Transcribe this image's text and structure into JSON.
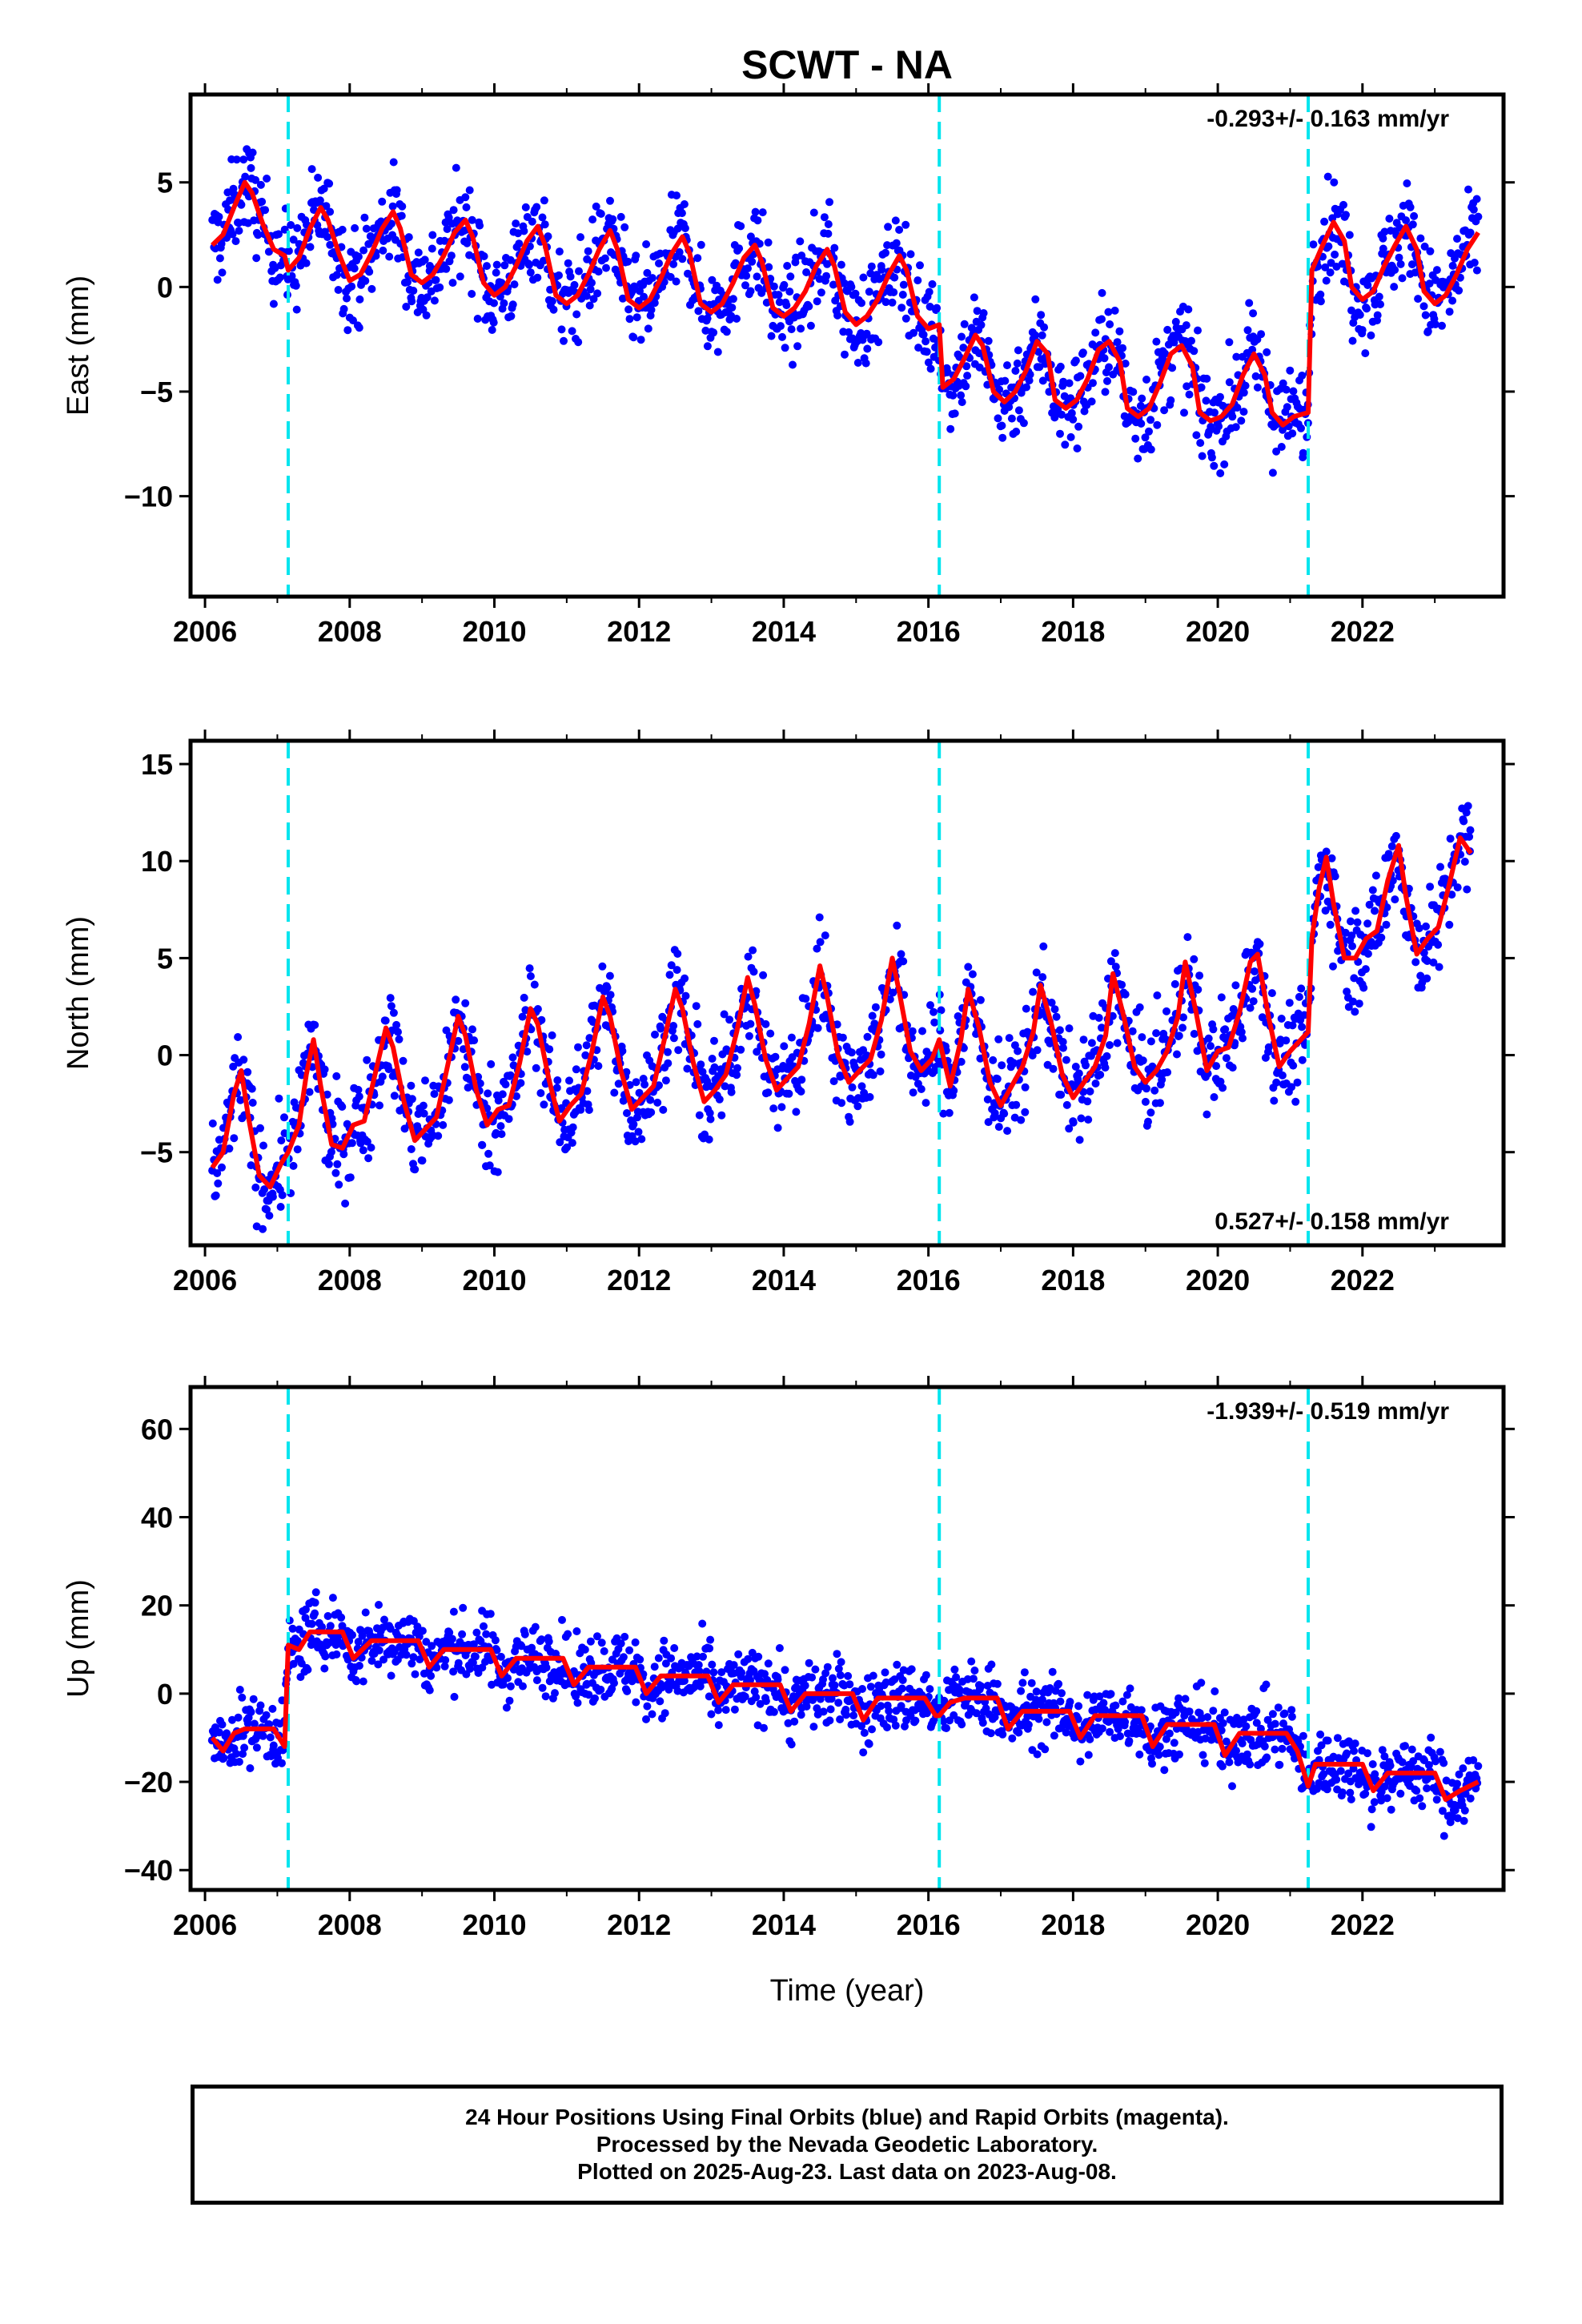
{
  "title": "SCWT - NA",
  "colors": {
    "points": "#0000ff",
    "model": "#ff0000",
    "offsets": "#00e5ee",
    "frame": "#000000"
  },
  "xlabel": "Time (year)",
  "footer": {
    "line1": "24 Hour Positions Using Final Orbits (blue) and Rapid Orbits (magenta).",
    "line2": "Processed by the Nevada Geodetic Laboratory.",
    "line3": "Plotted on 2025-Aug-23. Last data on 2023-Aug-08."
  },
  "chart_data": [
    {
      "type": "scatter",
      "name": "east",
      "ylabel": "East (mm)",
      "rate_text": "-0.293+/- 0.163 mm/yr",
      "rate_position": "top-right",
      "xlim": [
        2005.8,
        2023.95
      ],
      "ylim": [
        -14.8,
        9.2
      ],
      "xticks": [
        2006,
        2008,
        2010,
        2012,
        2014,
        2016,
        2018,
        2020,
        2022
      ],
      "yticks": [
        -10,
        -5,
        0,
        5
      ],
      "offsets": [
        2007.15,
        2016.15,
        2021.25
      ],
      "x": [
        2006.1,
        2006.25,
        2006.4,
        2006.55,
        2006.65,
        2006.8,
        2006.95,
        2007.1,
        2007.15,
        2007.3,
        2007.45,
        2007.6,
        2007.7,
        2007.85,
        2008.0,
        2008.15,
        2008.3,
        2008.45,
        2008.6,
        2008.7,
        2008.85,
        2009.0,
        2009.15,
        2009.3,
        2009.45,
        2009.6,
        2009.7,
        2009.85,
        2010.0,
        2010.15,
        2010.3,
        2010.45,
        2010.6,
        2010.7,
        2010.85,
        2011.0,
        2011.15,
        2011.3,
        2011.45,
        2011.6,
        2011.7,
        2011.85,
        2012.0,
        2012.15,
        2012.3,
        2012.45,
        2012.6,
        2012.7,
        2012.85,
        2013.0,
        2013.15,
        2013.3,
        2013.45,
        2013.6,
        2013.7,
        2013.85,
        2014.0,
        2014.15,
        2014.3,
        2014.45,
        2014.6,
        2014.7,
        2014.85,
        2015.0,
        2015.15,
        2015.3,
        2015.45,
        2015.6,
        2015.7,
        2015.85,
        2016.0,
        2016.15,
        2016.2,
        2016.35,
        2016.5,
        2016.65,
        2016.75,
        2016.9,
        2017.05,
        2017.2,
        2017.35,
        2017.5,
        2017.65,
        2017.75,
        2017.9,
        2018.05,
        2018.2,
        2018.35,
        2018.5,
        2018.65,
        2018.75,
        2018.9,
        2019.05,
        2019.2,
        2019.35,
        2019.5,
        2019.65,
        2019.75,
        2019.9,
        2020.05,
        2020.2,
        2020.35,
        2020.5,
        2020.65,
        2020.75,
        2020.9,
        2021.05,
        2021.25,
        2021.3,
        2021.45,
        2021.6,
        2021.75,
        2021.85,
        2022.0,
        2022.15,
        2022.3,
        2022.45,
        2022.6,
        2022.75,
        2022.85,
        2023.0,
        2023.15,
        2023.3,
        2023.45,
        2023.6
      ],
      "model": [
        2.0,
        2.5,
        3.8,
        5.0,
        4.5,
        3.0,
        1.8,
        1.5,
        0.8,
        1.4,
        2.8,
        3.8,
        3.2,
        1.6,
        0.3,
        0.6,
        1.6,
        2.8,
        3.6,
        2.8,
        0.6,
        0.2,
        0.6,
        1.5,
        2.6,
        3.2,
        2.4,
        0.2,
        -0.4,
        0.0,
        1.0,
        2.2,
        2.9,
        2.0,
        -0.4,
        -0.8,
        -0.4,
        0.6,
        1.8,
        2.7,
        1.8,
        -0.6,
        -1.0,
        -0.6,
        0.4,
        1.6,
        2.4,
        1.6,
        -0.8,
        -1.2,
        -0.8,
        0.2,
        1.4,
        2.0,
        1.2,
        -1.0,
        -1.4,
        -1.0,
        -0.2,
        1.0,
        1.8,
        1.0,
        -1.2,
        -1.8,
        -1.4,
        -0.6,
        0.6,
        1.5,
        0.8,
        -1.4,
        -2.0,
        -1.8,
        -4.8,
        -4.4,
        -3.4,
        -2.3,
        -2.8,
        -5.0,
        -5.5,
        -5.0,
        -4.0,
        -2.6,
        -3.2,
        -5.4,
        -5.8,
        -5.4,
        -4.4,
        -3.0,
        -2.6,
        -3.6,
        -5.8,
        -6.2,
        -5.8,
        -4.6,
        -3.2,
        -2.8,
        -3.8,
        -6.0,
        -6.4,
        -6.2,
        -5.6,
        -4.2,
        -3.2,
        -4.2,
        -6.0,
        -6.6,
        -6.2,
        -6.0,
        0.8,
        2.0,
        3.1,
        2.2,
        0.0,
        -0.6,
        -0.2,
        1.0,
        2.0,
        2.9,
        1.8,
        -0.2,
        -0.8,
        -0.4,
        0.6,
        1.8,
        2.6
      ],
      "scatter_spread": 1.6
    },
    {
      "type": "scatter",
      "name": "north",
      "ylabel": "North (mm)",
      "rate_text": "0.527+/- 0.158 mm/yr",
      "rate_position": "bottom-right",
      "xlim": [
        2005.8,
        2023.95
      ],
      "ylim": [
        -9.8,
        16.2
      ],
      "xticks": [
        2006,
        2008,
        2010,
        2012,
        2014,
        2016,
        2018,
        2020,
        2022
      ],
      "yticks": [
        -5,
        0,
        5,
        10,
        15
      ],
      "offsets": [
        2007.15,
        2016.15,
        2021.25
      ],
      "x": [
        2006.1,
        2006.25,
        2006.4,
        2006.5,
        2006.6,
        2006.75,
        2006.9,
        2007.05,
        2007.15,
        2007.3,
        2007.4,
        2007.5,
        2007.6,
        2007.75,
        2007.9,
        2008.05,
        2008.2,
        2008.35,
        2008.5,
        2008.6,
        2008.75,
        2008.9,
        2009.05,
        2009.2,
        2009.35,
        2009.5,
        2009.6,
        2009.75,
        2009.9,
        2010.05,
        2010.2,
        2010.35,
        2010.5,
        2010.6,
        2010.75,
        2010.9,
        2011.05,
        2011.2,
        2011.35,
        2011.5,
        2011.6,
        2011.75,
        2011.9,
        2012.05,
        2012.2,
        2012.35,
        2012.5,
        2012.6,
        2012.75,
        2012.9,
        2013.05,
        2013.2,
        2013.35,
        2013.5,
        2013.6,
        2013.75,
        2013.9,
        2014.05,
        2014.2,
        2014.35,
        2014.5,
        2014.6,
        2014.75,
        2014.9,
        2015.05,
        2015.2,
        2015.35,
        2015.5,
        2015.6,
        2015.75,
        2015.9,
        2016.05,
        2016.15,
        2016.3,
        2016.45,
        2016.55,
        2016.7,
        2016.85,
        2017.0,
        2017.15,
        2017.3,
        2017.45,
        2017.55,
        2017.7,
        2017.85,
        2018.0,
        2018.15,
        2018.3,
        2018.45,
        2018.55,
        2018.7,
        2018.85,
        2019.0,
        2019.15,
        2019.3,
        2019.45,
        2019.55,
        2019.7,
        2019.85,
        2020.0,
        2020.15,
        2020.3,
        2020.45,
        2020.55,
        2020.7,
        2020.85,
        2021.0,
        2021.25,
        2021.3,
        2021.4,
        2021.5,
        2021.6,
        2021.75,
        2021.9,
        2022.05,
        2022.2,
        2022.35,
        2022.5,
        2022.6,
        2022.75,
        2022.9,
        2023.05,
        2023.2,
        2023.35,
        2023.5,
        2023.6
      ],
      "model": [
        -5.8,
        -5.0,
        -2.0,
        -0.8,
        -3.2,
        -6.2,
        -6.8,
        -5.6,
        -5.0,
        -3.6,
        -1.0,
        0.8,
        -1.6,
        -4.6,
        -4.8,
        -3.6,
        -3.4,
        -1.0,
        1.4,
        0.4,
        -2.4,
        -4.4,
        -3.8,
        -3.2,
        -0.6,
        2.0,
        1.0,
        -1.8,
        -3.6,
        -2.8,
        -2.6,
        -0.4,
        2.4,
        1.6,
        -1.2,
        -3.4,
        -2.6,
        -2.0,
        0.2,
        3.0,
        2.0,
        -0.8,
        -2.8,
        -2.2,
        -1.6,
        0.8,
        3.4,
        2.4,
        -0.4,
        -2.4,
        -1.8,
        -1.0,
        1.2,
        4.0,
        2.6,
        -0.2,
        -1.8,
        -1.2,
        -0.6,
        1.6,
        4.6,
        3.0,
        0.0,
        -1.4,
        -0.8,
        -0.2,
        1.8,
        5.0,
        3.2,
        0.2,
        -0.8,
        -0.2,
        0.8,
        -1.6,
        0.8,
        3.4,
        1.4,
        -1.4,
        -2.6,
        -1.6,
        -0.6,
        1.2,
        3.6,
        1.6,
        -1.0,
        -2.2,
        -1.4,
        -0.6,
        1.0,
        4.2,
        2.0,
        -0.6,
        -1.4,
        -0.8,
        0.2,
        2.0,
        4.8,
        2.2,
        -0.8,
        0.2,
        0.4,
        2.2,
        4.8,
        5.2,
        2.0,
        -0.6,
        0.2,
        1.2,
        6.0,
        8.6,
        10.2,
        7.8,
        5.0,
        5.0,
        6.0,
        6.4,
        9.0,
        10.8,
        8.2,
        5.2,
        6.0,
        6.6,
        8.8,
        11.2,
        10.4
      ],
      "scatter_spread": 1.8
    },
    {
      "type": "scatter",
      "name": "up",
      "ylabel": "Up (mm)",
      "rate_text": "-1.939+/- 0.519 mm/yr",
      "rate_position": "top-right",
      "xlim": [
        2005.8,
        2023.95
      ],
      "ylim": [
        -44.5,
        69.5
      ],
      "xticks": [
        2006,
        2008,
        2010,
        2012,
        2014,
        2016,
        2018,
        2020,
        2022
      ],
      "yticks": [
        -40,
        -20,
        0,
        20,
        40,
        60
      ],
      "offsets": [
        2007.15,
        2016.15,
        2021.25
      ],
      "x": [
        2006.1,
        2006.25,
        2006.4,
        2006.55,
        2006.75,
        2006.95,
        2007.1,
        2007.15,
        2007.3,
        2007.45,
        2007.65,
        2007.9,
        2008.05,
        2008.3,
        2008.5,
        2008.7,
        2008.95,
        2009.1,
        2009.3,
        2009.5,
        2009.7,
        2009.95,
        2010.1,
        2010.3,
        2010.5,
        2010.7,
        2010.95,
        2011.1,
        2011.3,
        2011.5,
        2011.7,
        2011.95,
        2012.1,
        2012.3,
        2012.5,
        2012.7,
        2012.95,
        2013.1,
        2013.3,
        2013.5,
        2013.7,
        2013.95,
        2014.1,
        2014.3,
        2014.5,
        2014.7,
        2014.95,
        2015.1,
        2015.3,
        2015.5,
        2015.7,
        2015.95,
        2016.1,
        2016.15,
        2016.3,
        2016.5,
        2016.7,
        2016.95,
        2017.1,
        2017.3,
        2017.5,
        2017.7,
        2017.95,
        2018.1,
        2018.3,
        2018.5,
        2018.7,
        2018.95,
        2019.1,
        2019.3,
        2019.5,
        2019.7,
        2019.95,
        2020.1,
        2020.3,
        2020.5,
        2020.7,
        2020.95,
        2021.1,
        2021.25,
        2021.35,
        2021.55,
        2021.75,
        2022.0,
        2022.15,
        2022.35,
        2022.55,
        2022.75,
        2023.0,
        2023.15,
        2023.35,
        2023.6
      ],
      "model": [
        -10,
        -13,
        -9,
        -8,
        -8,
        -8,
        -12,
        11,
        10,
        14,
        14,
        14,
        8,
        12,
        12,
        12,
        12,
        6,
        10,
        10,
        10,
        10,
        4,
        8,
        8,
        8,
        8,
        2,
        6,
        6,
        6,
        6,
        0,
        4,
        4,
        4,
        4,
        -2,
        2,
        2,
        2,
        2,
        -4,
        0,
        0,
        0,
        0,
        -6,
        -1,
        -1,
        -1,
        -1,
        -5,
        -5,
        -2,
        -1,
        -1,
        -1,
        -8,
        -4,
        -4,
        -4,
        -4,
        -10,
        -5,
        -5,
        -5,
        -5,
        -12,
        -7,
        -7,
        -7,
        -7,
        -14,
        -9,
        -9,
        -9,
        -9,
        -13,
        -21,
        -16,
        -16,
        -16,
        -16,
        -22,
        -18,
        -18,
        -18,
        -18,
        -24,
        -22,
        -20,
        -19
      ],
      "scatter_spread": 5.5
    }
  ]
}
